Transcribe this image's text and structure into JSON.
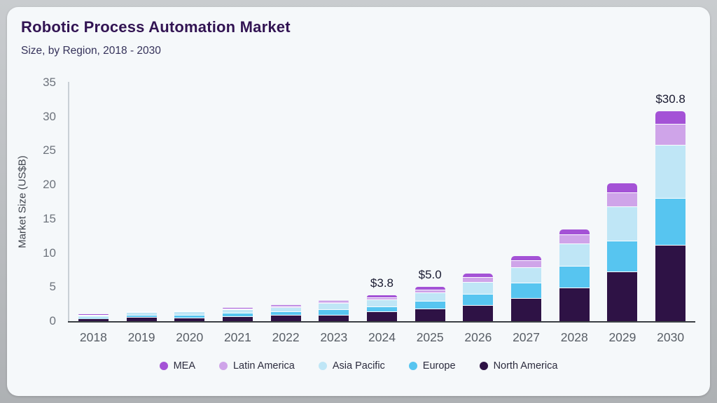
{
  "chart_data": {
    "type": "bar",
    "stacked": true,
    "title": "Robotic Process Automation Market",
    "subtitle": "Size, by Region, 2018 - 2030",
    "ylabel": "Market Size (US$B)",
    "ylim": [
      0,
      35
    ],
    "yticks": [
      0,
      5,
      10,
      15,
      20,
      25,
      30,
      35
    ],
    "grid": false,
    "legend_position": "bottom",
    "categories": [
      "2018",
      "2019",
      "2020",
      "2021",
      "2022",
      "2023",
      "2024",
      "2025",
      "2026",
      "2027",
      "2028",
      "2029",
      "2030"
    ],
    "series": [
      {
        "name": "North America",
        "color": "#2e1245",
        "values": [
          0.45,
          0.6,
          0.55,
          0.75,
          0.9,
          0.95,
          1.4,
          1.9,
          2.4,
          3.4,
          4.9,
          7.3,
          11.2
        ]
      },
      {
        "name": "Europe",
        "color": "#57c5f0",
        "values": [
          0.2,
          0.3,
          0.4,
          0.45,
          0.5,
          0.8,
          0.8,
          1.1,
          1.6,
          2.2,
          3.2,
          4.5,
          6.9
        ]
      },
      {
        "name": "Asia Pacific",
        "color": "#bfe6f6",
        "values": [
          0.2,
          0.4,
          0.45,
          0.55,
          0.7,
          0.9,
          1.0,
          1.2,
          1.8,
          2.3,
          3.3,
          5.0,
          7.8
        ]
      },
      {
        "name": "Latin America",
        "color": "#cfa4e9",
        "values": [
          0.05,
          0.1,
          0.1,
          0.15,
          0.15,
          0.2,
          0.3,
          0.4,
          0.7,
          1.0,
          1.3,
          2.1,
          3.0
        ]
      },
      {
        "name": "MEA",
        "color": "#a452d6",
        "values": [
          0.05,
          0.05,
          0.05,
          0.1,
          0.1,
          0.1,
          0.3,
          0.4,
          0.5,
          0.6,
          0.8,
          1.3,
          1.9
        ]
      }
    ],
    "totals": [
      0.95,
      1.45,
      1.55,
      2.0,
      2.35,
      2.95,
      3.8,
      5.0,
      7.0,
      9.5,
      13.5,
      20.2,
      30.8
    ],
    "annotations": [
      {
        "category": "2024",
        "text": "$3.8"
      },
      {
        "category": "2025",
        "text": "$5.0"
      },
      {
        "category": "2030",
        "text": "$30.8"
      }
    ],
    "legend_order": [
      "MEA",
      "Latin America",
      "Asia Pacific",
      "Europe",
      "North America"
    ]
  }
}
